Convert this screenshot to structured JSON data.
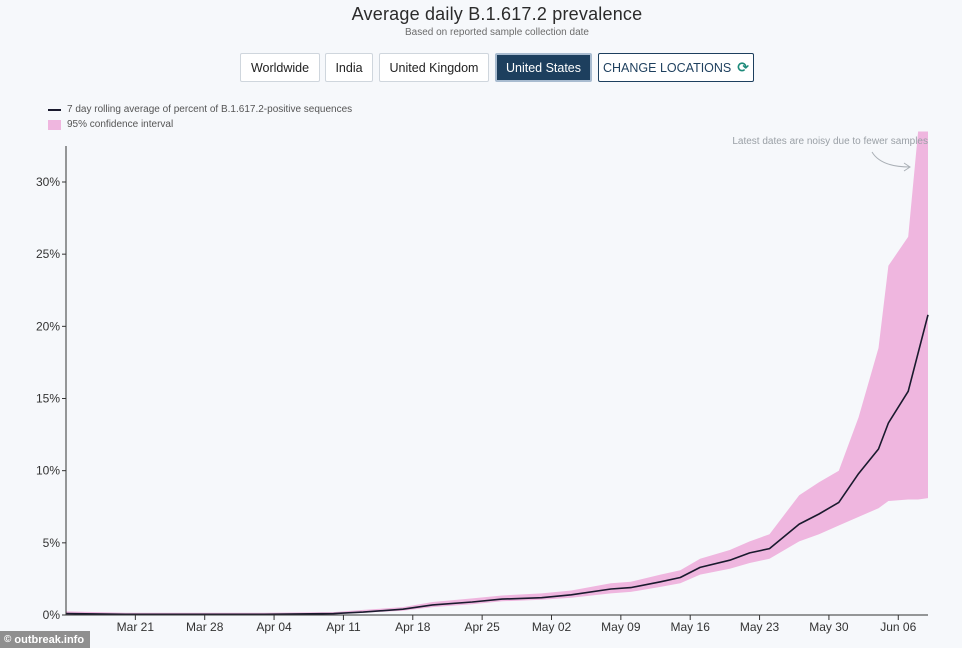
{
  "header": {
    "title": "Average daily B.1.617.2 prevalence",
    "subtitle": "Based on reported sample collection date"
  },
  "location_buttons": {
    "worldwide": "Worldwide",
    "india": "India",
    "united_kingdom": "United Kingdom",
    "united_states": "United States",
    "change_locations": "CHANGE LOCATIONS",
    "selected": "United States"
  },
  "legend": {
    "line_label": "7 day rolling average of percent of B.1.617.2-positive sequences",
    "band_label": "95% confidence interval"
  },
  "annotation": "Latest dates are noisy due to fewer samples",
  "source_badge": {
    "icon": "copyright-icon",
    "text": "outbreak.info"
  },
  "colors": {
    "line": "#1a1a2e",
    "band": "#efb6df",
    "active_button": "#1d3f5e"
  },
  "chart_data": {
    "type": "line",
    "title": "Average daily B.1.617.2 prevalence",
    "subtitle": "Based on reported sample collection date",
    "xlabel": "",
    "ylabel": "",
    "x_start": "2021-03-14",
    "ylim": [
      0,
      32.5
    ],
    "yticks": [
      0,
      5,
      10,
      15,
      20,
      25,
      30
    ],
    "ytick_labels": [
      "0%",
      "5%",
      "10%",
      "15%",
      "20%",
      "25%",
      "30%"
    ],
    "xticks": [
      "2021-03-21",
      "2021-03-28",
      "2021-04-04",
      "2021-04-11",
      "2021-04-18",
      "2021-04-25",
      "2021-05-02",
      "2021-05-09",
      "2021-05-16",
      "2021-05-23",
      "2021-05-30",
      "2021-06-06"
    ],
    "xtick_labels": [
      "Mar 21",
      "Mar 28",
      "Apr 04",
      "Apr 11",
      "Apr 18",
      "Apr 25",
      "May 02",
      "May 09",
      "May 16",
      "May 23",
      "May 30",
      "Jun 06"
    ],
    "grid": false,
    "legend_position": "top-left",
    "series": [
      {
        "name": "7 day rolling average of percent of B.1.617.2-positive sequences",
        "x": [
          "2021-03-14",
          "2021-03-20",
          "2021-03-27",
          "2021-04-03",
          "2021-04-10",
          "2021-04-13",
          "2021-04-17",
          "2021-04-20",
          "2021-04-24",
          "2021-04-27",
          "2021-05-01",
          "2021-05-04",
          "2021-05-08",
          "2021-05-10",
          "2021-05-13",
          "2021-05-15",
          "2021-05-17",
          "2021-05-20",
          "2021-05-22",
          "2021-05-24",
          "2021-05-27",
          "2021-05-29",
          "2021-05-31",
          "2021-06-02",
          "2021-06-04",
          "2021-06-05",
          "2021-06-07",
          "2021-06-09"
        ],
        "y": [
          0.1,
          0.05,
          0.05,
          0.05,
          0.1,
          0.2,
          0.4,
          0.7,
          0.9,
          1.1,
          1.2,
          1.4,
          1.8,
          1.9,
          2.3,
          2.6,
          3.3,
          3.8,
          4.3,
          4.6,
          6.3,
          7.0,
          7.8,
          9.8,
          11.5,
          13.3,
          15.5,
          20.8
        ]
      },
      {
        "name": "95% confidence interval",
        "x": [
          "2021-03-14",
          "2021-03-20",
          "2021-03-27",
          "2021-04-03",
          "2021-04-10",
          "2021-04-13",
          "2021-04-17",
          "2021-04-20",
          "2021-04-24",
          "2021-04-27",
          "2021-05-01",
          "2021-05-04",
          "2021-05-08",
          "2021-05-10",
          "2021-05-13",
          "2021-05-15",
          "2021-05-17",
          "2021-05-20",
          "2021-05-22",
          "2021-05-24",
          "2021-05-27",
          "2021-05-29",
          "2021-05-31",
          "2021-06-02",
          "2021-06-04",
          "2021-06-05",
          "2021-06-07",
          "2021-06-08",
          "2021-06-09"
        ],
        "lower": [
          0.0,
          0.0,
          0.0,
          0.0,
          0.05,
          0.15,
          0.3,
          0.55,
          0.75,
          0.95,
          1.05,
          1.2,
          1.5,
          1.6,
          1.95,
          2.2,
          2.8,
          3.2,
          3.6,
          3.9,
          5.1,
          5.6,
          6.2,
          6.8,
          7.4,
          7.9,
          8.0,
          8.0,
          8.1
        ],
        "upper": [
          0.25,
          0.15,
          0.15,
          0.15,
          0.2,
          0.35,
          0.55,
          0.9,
          1.15,
          1.35,
          1.5,
          1.7,
          2.2,
          2.3,
          2.8,
          3.1,
          3.9,
          4.5,
          5.1,
          5.6,
          8.3,
          9.2,
          10.0,
          13.7,
          18.5,
          24.2,
          26.2,
          33.5,
          33.5
        ]
      }
    ]
  }
}
